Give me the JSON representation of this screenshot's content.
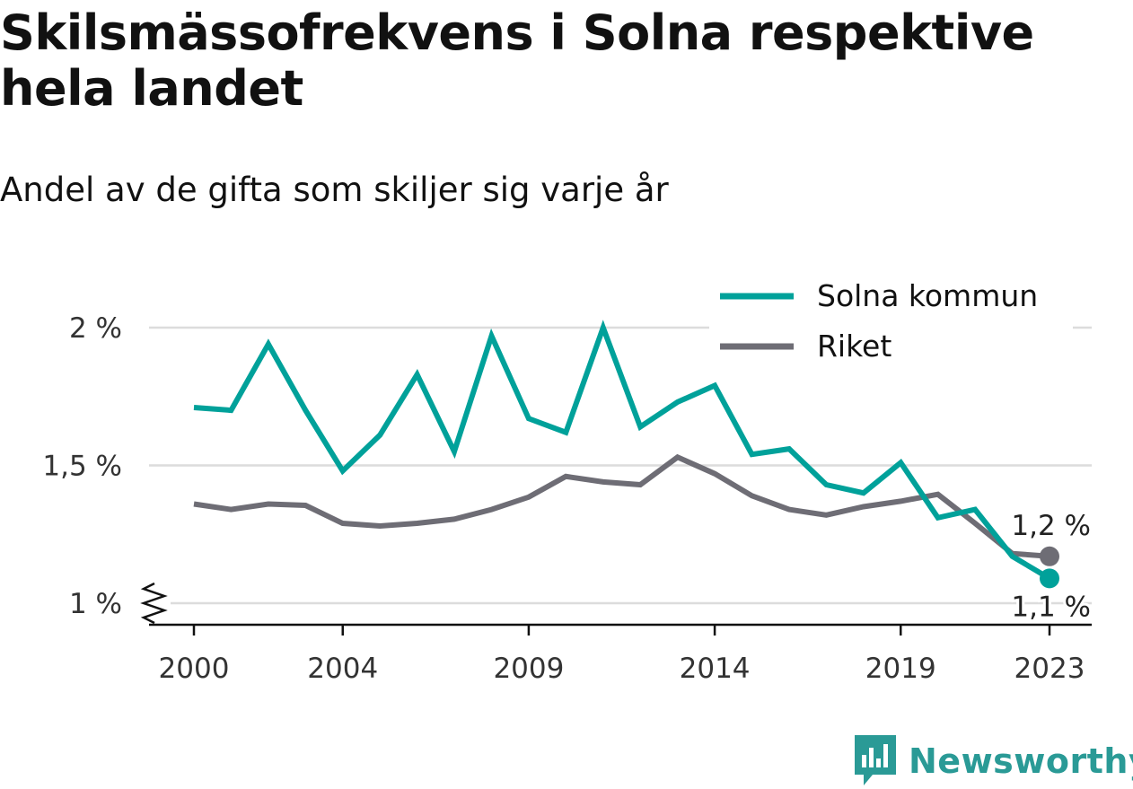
{
  "title": "Skilsmässofrekvens i Solna respektive hela landet",
  "subtitle": "Andel av de gifta som skiljer sig varje år",
  "brand": "Newsworthy",
  "chart_data": {
    "type": "line",
    "x": [
      2000,
      2001,
      2002,
      2003,
      2004,
      2005,
      2006,
      2007,
      2008,
      2009,
      2010,
      2011,
      2012,
      2013,
      2014,
      2015,
      2016,
      2017,
      2018,
      2019,
      2020,
      2021,
      2022,
      2023
    ],
    "x_ticks": [
      2000,
      2004,
      2009,
      2014,
      2019,
      2023
    ],
    "x_tick_labels": [
      "2000",
      "2004",
      "2009",
      "2014",
      "2019",
      "2023"
    ],
    "y_ticks": [
      1,
      1.5,
      2
    ],
    "y_tick_labels": [
      "1 %",
      "1,5 %",
      "2 %"
    ],
    "ylim": [
      0.92,
      2.02
    ],
    "grid": true,
    "legend_position": "top-right",
    "series": [
      {
        "name": "Solna kommun",
        "color": "#00a19a",
        "values": [
          1.71,
          1.7,
          1.94,
          1.7,
          1.48,
          1.61,
          1.83,
          1.55,
          1.97,
          1.67,
          1.62,
          2.0,
          1.64,
          1.73,
          1.79,
          1.54,
          1.56,
          1.43,
          1.4,
          1.51,
          1.31,
          1.34,
          1.17,
          1.09
        ],
        "end_label": "1,1 %"
      },
      {
        "name": "Riket",
        "color": "#6e6d75",
        "values": [
          1.36,
          1.34,
          1.36,
          1.355,
          1.29,
          1.28,
          1.29,
          1.305,
          1.34,
          1.385,
          1.46,
          1.44,
          1.43,
          1.53,
          1.47,
          1.39,
          1.34,
          1.32,
          1.35,
          1.37,
          1.395,
          1.29,
          1.18,
          1.17
        ],
        "end_label": "1,2 %"
      }
    ]
  }
}
